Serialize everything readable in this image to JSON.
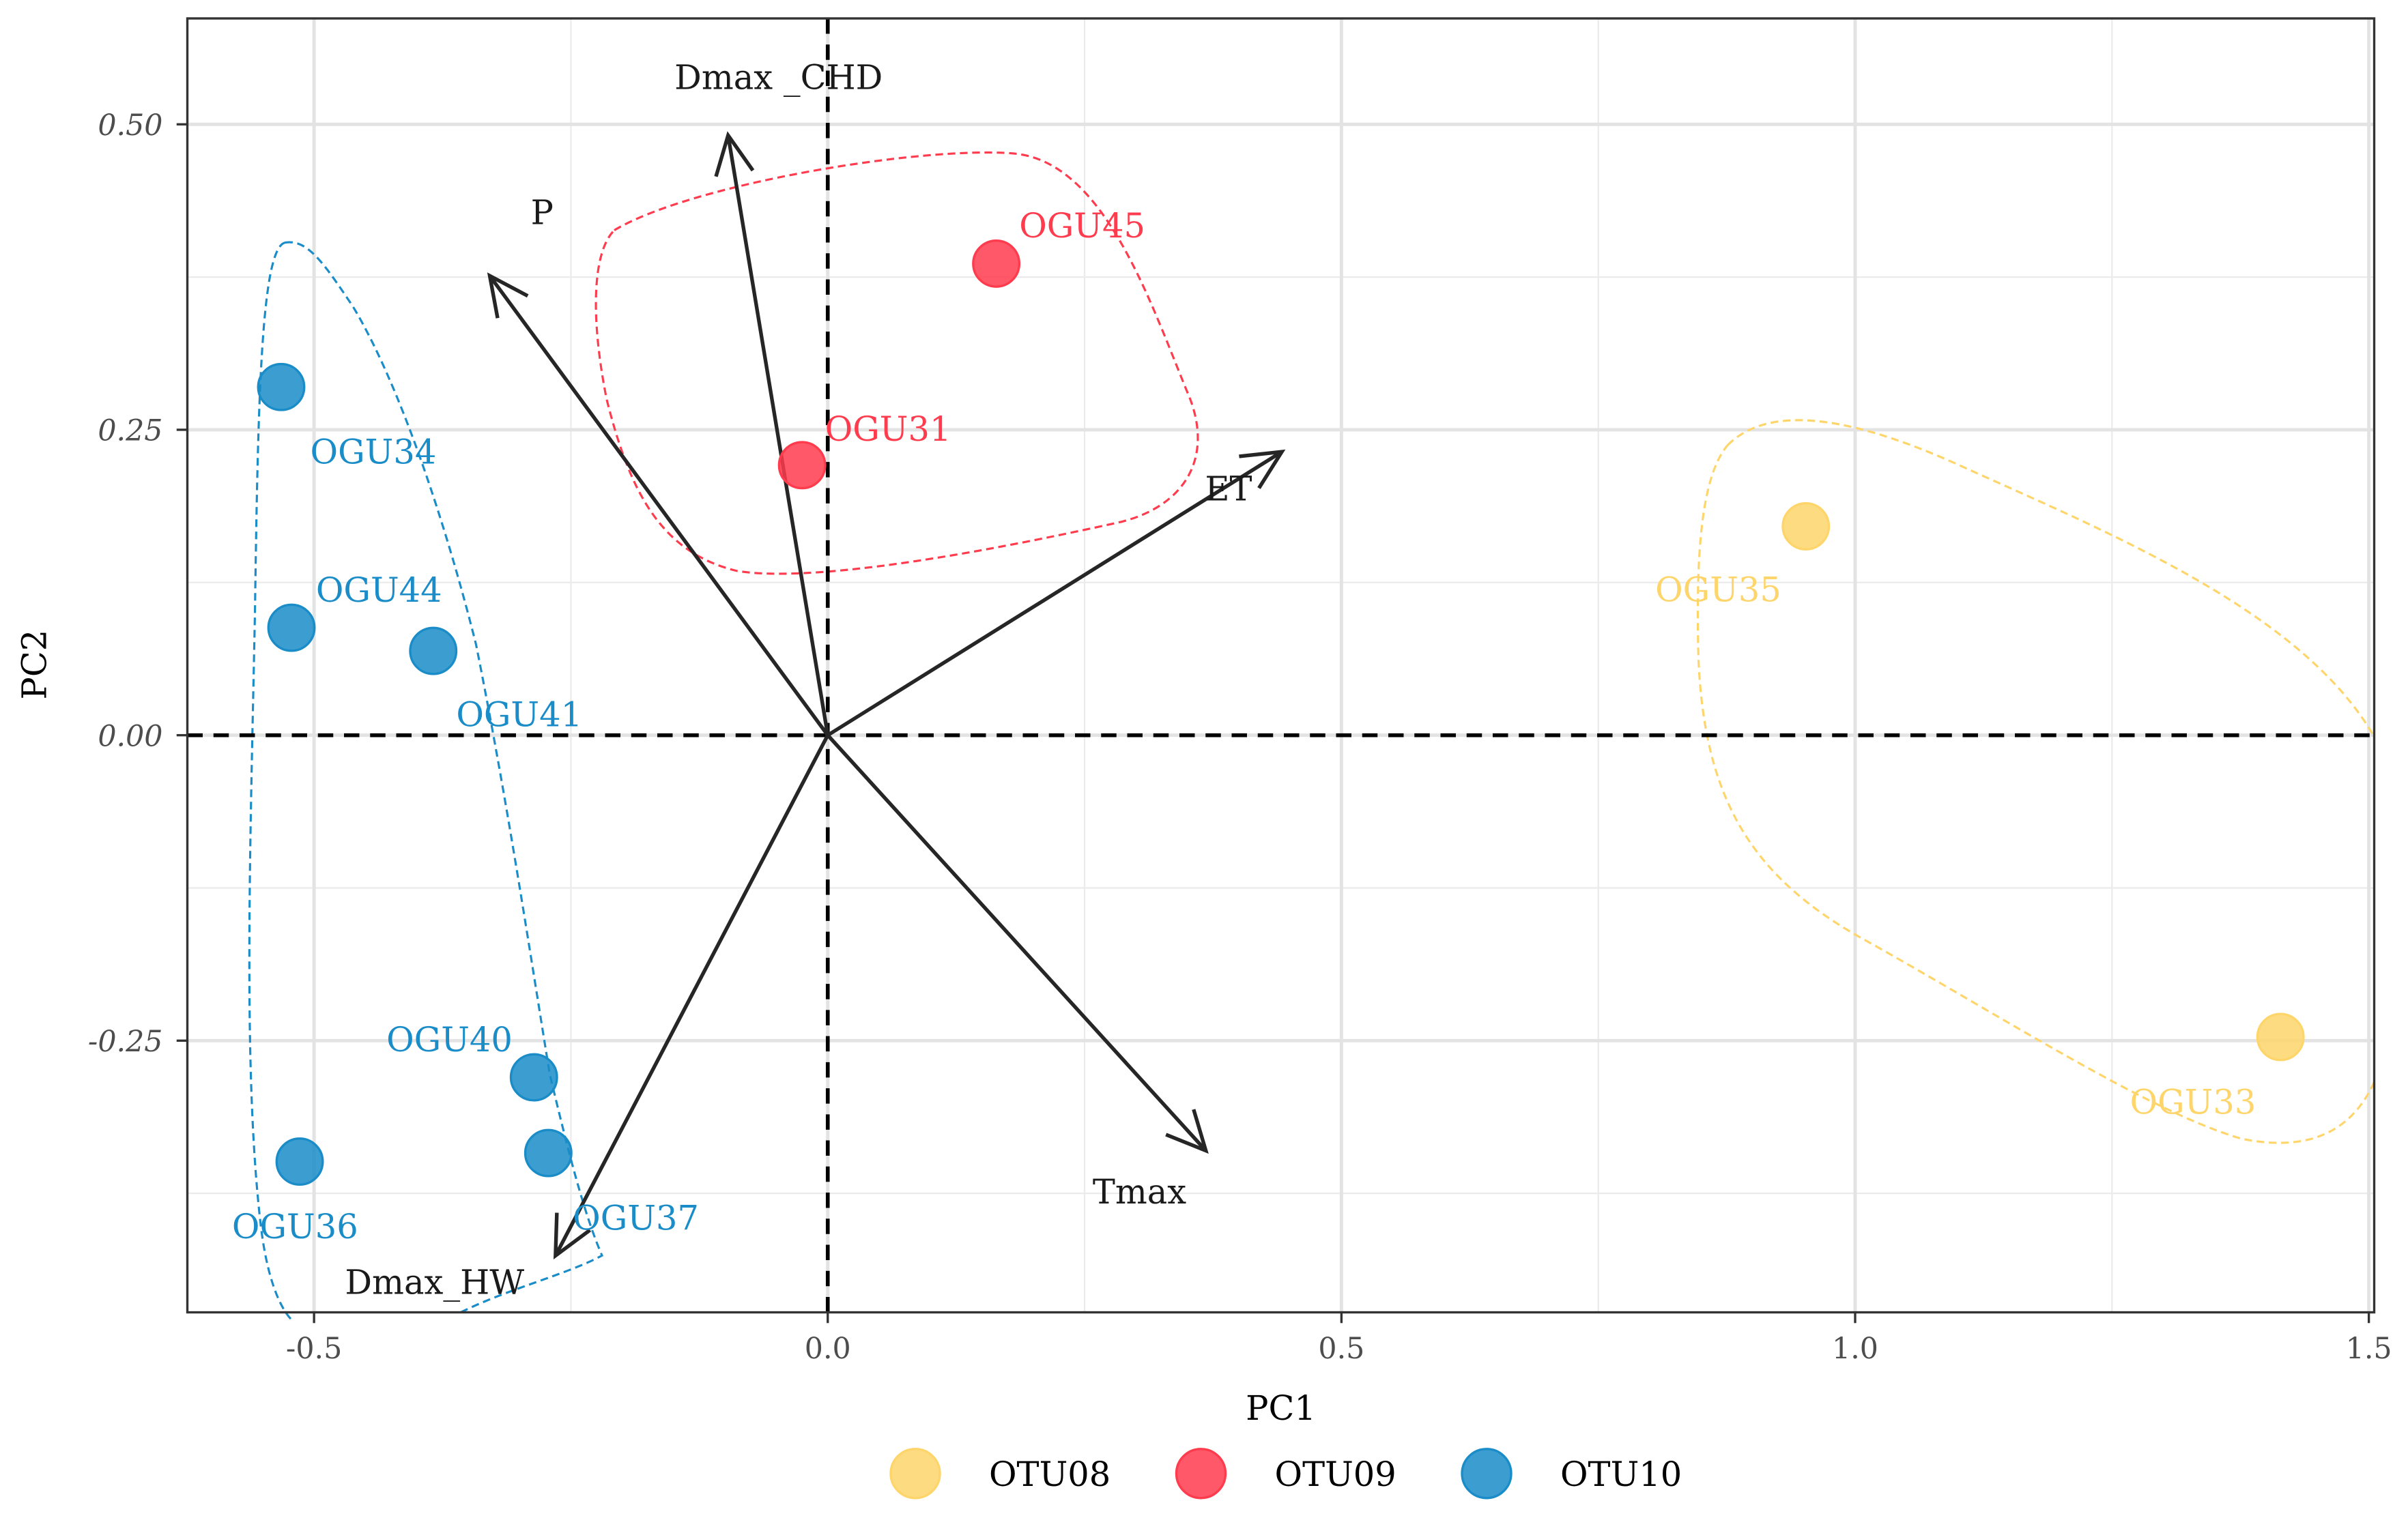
{
  "chart_data": {
    "type": "scatter",
    "title": "",
    "xlabel": "PC1",
    "ylabel": "PC2",
    "xlim": [
      -0.62,
      1.51
    ],
    "ylim": [
      -0.47,
      0.59
    ],
    "x_ticks": [
      "-0.5",
      "0.0",
      "0.5",
      "1.0",
      "1.5"
    ],
    "x_tick_values": [
      -0.5,
      0,
      0.5,
      1.0,
      1.5
    ],
    "y_ticks": [
      "0.50",
      "0.25",
      "0.00",
      "-0.25"
    ],
    "y_tick_values": [
      0.5,
      0.25,
      0,
      -0.25
    ],
    "grid": true,
    "legend_position": "bottom",
    "groups": [
      {
        "name": "OTU08",
        "color": "#FDD56A"
      },
      {
        "name": "OTU09",
        "color": "#FF3B4E"
      },
      {
        "name": "OTU10",
        "color": "#1A8CC8"
      }
    ],
    "points": [
      {
        "label": "OGU34",
        "group": "OTU10",
        "x": -0.532,
        "y": 0.285
      },
      {
        "label": "OGU44",
        "group": "OTU10",
        "x": -0.522,
        "y": 0.088
      },
      {
        "label": "OGU41",
        "group": "OTU10",
        "x": -0.384,
        "y": 0.069
      },
      {
        "label": "OGU40",
        "group": "OTU10",
        "x": -0.286,
        "y": -0.28
      },
      {
        "label": "OGU37",
        "group": "OTU10",
        "x": -0.272,
        "y": -0.342
      },
      {
        "label": "OGU36",
        "group": "OTU10",
        "x": -0.514,
        "y": -0.349
      },
      {
        "label": "OGU31",
        "group": "OTU09",
        "x": -0.025,
        "y": 0.221
      },
      {
        "label": "OGU45",
        "group": "OTU09",
        "x": 0.164,
        "y": 0.386
      },
      {
        "label": "OGU35",
        "group": "OTU08",
        "x": 0.952,
        "y": 0.171
      },
      {
        "label": "OGU33",
        "group": "OTU08",
        "x": 1.414,
        "y": -0.247
      }
    ],
    "loadings": [
      {
        "label": "Dmax _CHD",
        "x": -0.097,
        "y": 0.491
      },
      {
        "label": "P",
        "x": -0.329,
        "y": 0.376
      },
      {
        "label": "ET",
        "x": 0.442,
        "y": 0.232
      },
      {
        "label": "Tmax",
        "x": 0.368,
        "y": -0.34
      },
      {
        "label": "Dmax_HW",
        "x": -0.265,
        "y": -0.426
      }
    ]
  }
}
